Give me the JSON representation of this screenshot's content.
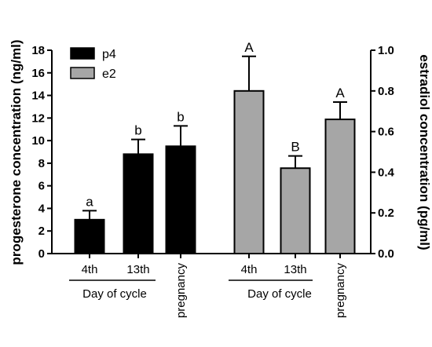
{
  "chart_data": {
    "type": "bar",
    "title": "",
    "left_axis": {
      "label": "progesterone concentration (ng/ml)",
      "ylim": [
        0,
        18
      ],
      "ticks": [
        "0",
        "2",
        "4",
        "6",
        "8",
        "10",
        "12",
        "14",
        "16",
        "18"
      ]
    },
    "right_axis": {
      "label": "estradiol concentration (pg/ml)",
      "ylim": [
        0,
        1.0
      ],
      "ticks": [
        "0.0",
        "0.2",
        "0.4",
        "0.6",
        "0.8",
        "1.0"
      ]
    },
    "group_label": "Day of cycle",
    "legend": {
      "placement": "top-left"
    },
    "series": [
      {
        "name": "p4",
        "axis": "left",
        "color": "#000000",
        "categories": [
          "4th",
          "13th",
          "pregnancy"
        ],
        "values": [
          3.0,
          8.8,
          9.5
        ],
        "errors": [
          0.8,
          1.3,
          1.8
        ],
        "significance": [
          "a",
          "b",
          "b"
        ]
      },
      {
        "name": "e2",
        "axis": "right",
        "color": "#a6a6a6",
        "categories": [
          "4th",
          "13th",
          "pregnancy"
        ],
        "values": [
          0.8,
          0.42,
          0.66
        ],
        "errors": [
          0.17,
          0.06,
          0.085
        ],
        "significance": [
          "A",
          "B",
          "A"
        ]
      }
    ]
  }
}
